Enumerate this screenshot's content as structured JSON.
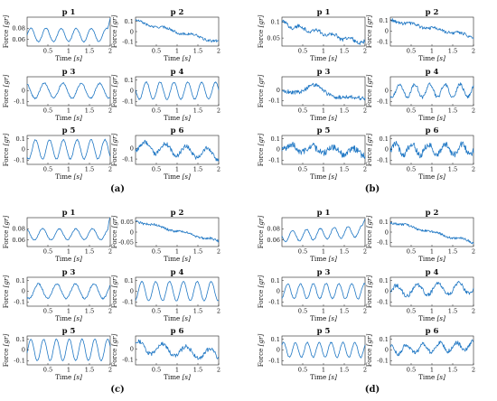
{
  "colors": {
    "trace": "#1f77c4",
    "axes": "#222222"
  },
  "chart_data": [
    {
      "type": "line",
      "panel_label": "(a)",
      "xlabel": "Time",
      "xunit": "[s]",
      "ylabel": "Force",
      "yunit": "[gr]",
      "xlim": [
        0,
        2
      ],
      "xticks": [
        "0.5",
        "1",
        "1.5",
        "2"
      ],
      "subplots": [
        {
          "title": "p 1",
          "ylim": [
            0.048,
            0.1
          ],
          "yticks": [
            "0.06",
            "0.08"
          ],
          "wave": {
            "base": 0.068,
            "amp": 0.012,
            "trend": 0.0,
            "freq": 5.5,
            "noise": 0.001,
            "end_spike": 0.03
          }
        },
        {
          "title": "p 2",
          "ylim": [
            -0.14,
            0.14
          ],
          "yticks": [
            "-0.1",
            "0",
            "0.1"
          ],
          "wave": {
            "base": 0.1,
            "amp": 0.012,
            "trend": -0.2,
            "freq": 3.0,
            "noise": 0.012
          }
        },
        {
          "title": "p 3",
          "ylim": [
            -0.14,
            0.13
          ],
          "yticks": [
            "-0.1",
            "0"
          ],
          "wave": {
            "base": 0.0,
            "amp": 0.07,
            "trend": 0.0,
            "freq": 4.5,
            "noise": 0.008
          }
        },
        {
          "title": "p 4",
          "ylim": [
            -0.14,
            0.13
          ],
          "yticks": [
            "-0.1",
            "0",
            "0.1"
          ],
          "wave": {
            "base": 0.0,
            "amp": 0.08,
            "trend": 0.0,
            "freq": 6.0,
            "noise": 0.006
          }
        },
        {
          "title": "p 5",
          "ylim": [
            -0.14,
            0.13
          ],
          "yticks": [
            "-0.1",
            "0",
            "0.1"
          ],
          "wave": {
            "base": 0.0,
            "amp": 0.09,
            "trend": 0.0,
            "freq": 6.0,
            "noise": 0.006
          }
        },
        {
          "title": "p 6",
          "ylim": [
            -0.15,
            0.12
          ],
          "yticks": [
            "-0.1",
            "0"
          ],
          "wave": {
            "base": 0.02,
            "amp": 0.05,
            "trend": -0.08,
            "freq": 4.0,
            "noise": 0.02
          }
        }
      ]
    },
    {
      "type": "line",
      "panel_label": "(b)",
      "xlabel": "Time",
      "xunit": "[s]",
      "ylabel": "Force",
      "yunit": "[gr]",
      "xlim": [
        0,
        2
      ],
      "xticks": [
        "0.5",
        "1",
        "1.5",
        "2"
      ],
      "subplots": [
        {
          "title": "p 1",
          "ylim": [
            0.025,
            0.115
          ],
          "yticks": [
            "0.05",
            "0.1"
          ],
          "wave": {
            "base": 0.095,
            "amp": 0.006,
            "trend": -0.06,
            "freq": 5.0,
            "noise": 0.006
          }
        },
        {
          "title": "p 2",
          "ylim": [
            -0.14,
            0.13
          ],
          "yticks": [
            "-0.1",
            "0",
            "0.1"
          ],
          "wave": {
            "base": 0.1,
            "amp": 0.01,
            "trend": -0.15,
            "freq": 3.5,
            "noise": 0.015
          }
        },
        {
          "title": "p 3",
          "ylim": [
            -0.15,
            0.13
          ],
          "yticks": [
            "-0.1",
            "0"
          ],
          "wave": {
            "base": 0.0,
            "amp": 0.01,
            "trend": -0.09,
            "freq": 2.0,
            "noise": 0.02,
            "bump": 0.08
          }
        },
        {
          "title": "p 4",
          "ylim": [
            -0.14,
            0.13
          ],
          "yticks": [
            "-0.1",
            "0"
          ],
          "wave": {
            "base": 0.0,
            "amp": 0.06,
            "trend": 0.0,
            "freq": 5.5,
            "noise": 0.015
          }
        },
        {
          "title": "p 5",
          "ylim": [
            -0.14,
            0.13
          ],
          "yticks": [
            "-0.1",
            "0",
            "0.1"
          ],
          "wave": {
            "base": 0.02,
            "amp": 0.03,
            "trend": -0.05,
            "freq": 4.0,
            "noise": 0.03
          }
        },
        {
          "title": "p 6",
          "ylim": [
            -0.14,
            0.13
          ],
          "yticks": [
            "-0.1",
            "0",
            "0.1"
          ],
          "wave": {
            "base": 0.0,
            "amp": 0.05,
            "trend": 0.0,
            "freq": 5.0,
            "noise": 0.03
          }
        }
      ]
    },
    {
      "type": "line",
      "panel_label": "(c)",
      "xlabel": "Time",
      "xunit": "[s]",
      "ylabel": "Force",
      "yunit": "[gr]",
      "xlim": [
        0,
        2
      ],
      "xticks": [
        "0.5",
        "1",
        "1.5",
        "2"
      ],
      "subplots": [
        {
          "title": "p 1",
          "ylim": [
            0.048,
            0.1
          ],
          "yticks": [
            "0.06",
            "0.08"
          ],
          "wave": {
            "base": 0.07,
            "amp": 0.01,
            "trend": 0.0,
            "freq": 5.0,
            "noise": 0.001,
            "end_spike": 0.025
          }
        },
        {
          "title": "p 2",
          "ylim": [
            -0.07,
            0.07
          ],
          "yticks": [
            "-0.05",
            "0",
            "0.05"
          ],
          "wave": {
            "base": 0.055,
            "amp": 0.005,
            "trend": -0.1,
            "freq": 3.0,
            "noise": 0.006
          }
        },
        {
          "title": "p 3",
          "ylim": [
            -0.14,
            0.13
          ],
          "yticks": [
            "-0.1",
            "0",
            "0.1"
          ],
          "wave": {
            "base": 0.0,
            "amp": 0.07,
            "trend": 0.0,
            "freq": 4.5,
            "noise": 0.008
          }
        },
        {
          "title": "p 4",
          "ylim": [
            -0.14,
            0.13
          ],
          "yticks": [
            "-0.1",
            "0",
            "0.1"
          ],
          "wave": {
            "base": 0.0,
            "amp": 0.09,
            "trend": 0.0,
            "freq": 6.0,
            "noise": 0.004
          }
        },
        {
          "title": "p 5",
          "ylim": [
            -0.14,
            0.13
          ],
          "yticks": [
            "-0.1",
            "0",
            "0.1"
          ],
          "wave": {
            "base": 0.0,
            "amp": 0.1,
            "trend": 0.0,
            "freq": 6.5,
            "noise": 0.004
          }
        },
        {
          "title": "p 6",
          "ylim": [
            -0.15,
            0.12
          ],
          "yticks": [
            "-0.1",
            "0"
          ],
          "wave": {
            "base": 0.02,
            "amp": 0.05,
            "trend": -0.08,
            "freq": 3.5,
            "noise": 0.02
          }
        }
      ]
    },
    {
      "type": "line",
      "panel_label": "(d)",
      "xlabel": "Time",
      "xunit": "[s]",
      "ylabel": "Force",
      "yunit": "[gr]",
      "xlim": [
        0,
        2
      ],
      "xticks": [
        "0.5",
        "1",
        "1.5",
        "2"
      ],
      "subplots": [
        {
          "title": "p 1",
          "ylim": [
            0.048,
            0.1
          ],
          "yticks": [
            "0.06",
            "0.08"
          ],
          "wave": {
            "base": 0.066,
            "amp": 0.01,
            "trend": 0.01,
            "freq": 6.0,
            "noise": 0.001,
            "end_spike": 0.02
          }
        },
        {
          "title": "p 2",
          "ylim": [
            -0.14,
            0.14
          ],
          "yticks": [
            "-0.1",
            "0",
            "0.1"
          ],
          "wave": {
            "base": 0.1,
            "amp": 0.01,
            "trend": -0.2,
            "freq": 3.0,
            "noise": 0.012
          }
        },
        {
          "title": "p 3",
          "ylim": [
            -0.14,
            0.13
          ],
          "yticks": [
            "-0.1",
            "0",
            "0.1"
          ],
          "wave": {
            "base": 0.0,
            "amp": 0.07,
            "trend": 0.0,
            "freq": 6.5,
            "noise": 0.006
          }
        },
        {
          "title": "p 4",
          "ylim": [
            -0.14,
            0.13
          ],
          "yticks": [
            "-0.1",
            "0",
            "0.1"
          ],
          "wave": {
            "base": 0.0,
            "amp": 0.05,
            "trend": 0.03,
            "freq": 4.0,
            "noise": 0.02
          }
        },
        {
          "title": "p 5",
          "ylim": [
            -0.14,
            0.13
          ],
          "yticks": [
            "-0.1",
            "0",
            "0.1"
          ],
          "wave": {
            "base": 0.0,
            "amp": 0.07,
            "trend": 0.0,
            "freq": 7.0,
            "noise": 0.006
          }
        },
        {
          "title": "p 6",
          "ylim": [
            -0.14,
            0.13
          ],
          "yticks": [
            "-0.1",
            "0",
            "0.1"
          ],
          "wave": {
            "base": 0.0,
            "amp": 0.04,
            "trend": 0.04,
            "freq": 5.0,
            "noise": 0.02
          }
        }
      ]
    }
  ]
}
